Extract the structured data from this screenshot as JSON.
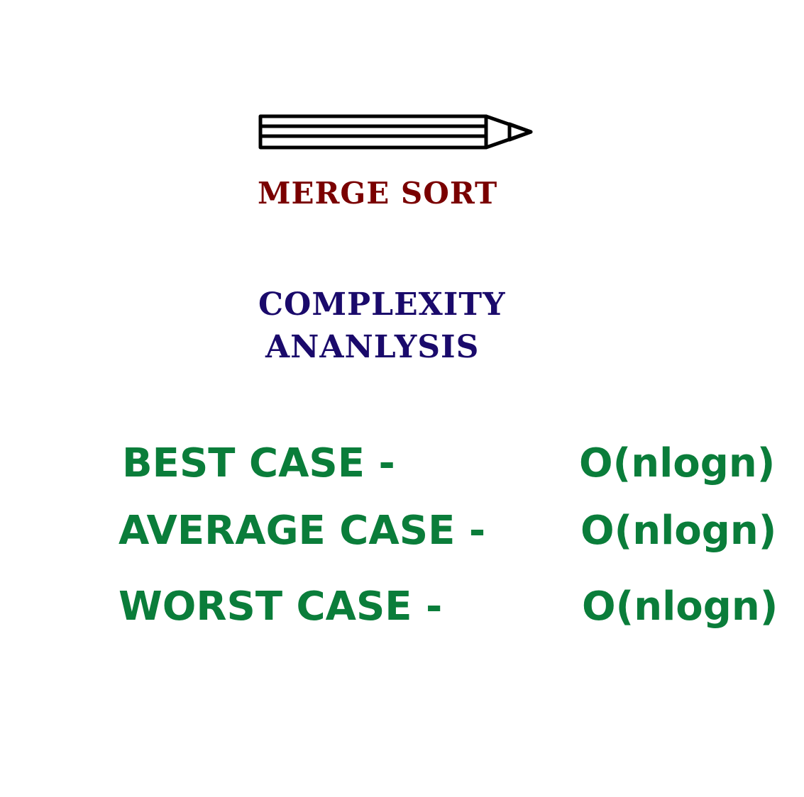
{
  "title": "MERGE SORT",
  "subtitle_lines": [
    "COMPLEXITY",
    "ANANLYSIS"
  ],
  "cases": [
    {
      "label": "BEST CASE -",
      "value": "O(nlogn)"
    },
    {
      "label": "AVERAGE CASE -",
      "value": "O(nlogn)"
    },
    {
      "label": "WORST CASE -",
      "value": "O(nlogn)"
    }
  ],
  "icon": "pencil-icon",
  "colors": {
    "title": "#7a0000",
    "subtitle": "#1a0a6b",
    "cases": "#0a7d3a",
    "icon_stroke": "#000000",
    "background": "#ffffff"
  }
}
